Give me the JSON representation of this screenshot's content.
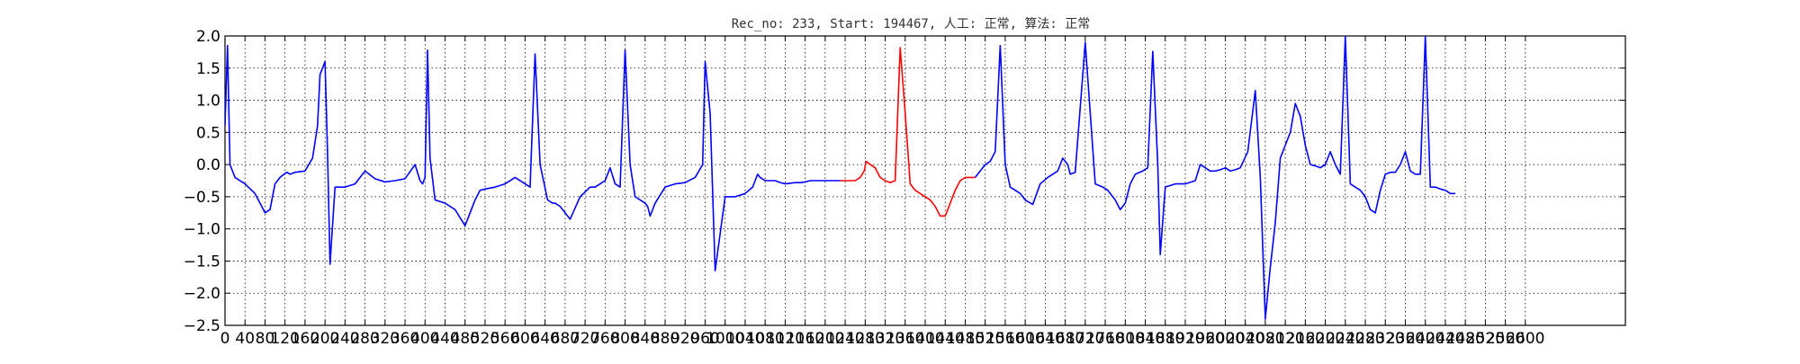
{
  "chart_data": {
    "type": "line",
    "title": "Rec_no: 233, Start: 194467, 人工: 正常, 算法: 正常",
    "xlabel": "",
    "ylabel": "",
    "xlim": [
      0,
      2800
    ],
    "ylim": [
      -2.5,
      2.0
    ],
    "grid": true,
    "grid_style": "dotted",
    "xticks": [
      0,
      40,
      80,
      120,
      160,
      200,
      240,
      280,
      320,
      360,
      400,
      440,
      480,
      520,
      560,
      600,
      640,
      680,
      720,
      760,
      800,
      840,
      880,
      920,
      960,
      1000,
      1040,
      1080,
      1120,
      1160,
      1200,
      1240,
      1280,
      1320,
      1360,
      1400,
      1440,
      1480,
      1520,
      1560,
      1600,
      1640,
      1680,
      1720,
      1760,
      1800,
      1840,
      1880,
      1920,
      1960,
      2000,
      2040,
      2080,
      2120,
      2160,
      2200,
      2240,
      2280,
      2320,
      2360,
      2400,
      2440,
      2480,
      2520,
      2560,
      2600
    ],
    "yticks": [
      -2.5,
      -2.0,
      -1.5,
      -1.0,
      -0.5,
      0.0,
      0.5,
      1.0,
      1.5,
      2.0
    ],
    "ytick_labels": [
      "−2.5",
      "−2.0",
      "−1.5",
      "−1.0",
      "−0.5",
      "0.0",
      "0.5",
      "1.0",
      "1.5",
      "2.0"
    ],
    "series": [
      {
        "color": "#0000ff",
        "x": [
          0,
          5,
          10,
          20,
          40,
          60,
          70,
          80,
          90,
          100,
          110,
          118,
          124,
          130,
          140,
          160,
          175,
          185,
          190,
          200,
          205,
          210,
          220,
          240,
          260,
          280,
          300,
          320,
          340,
          360,
          380,
          390,
          395,
          400,
          405,
          410,
          420,
          440,
          460,
          480,
          490,
          500,
          510,
          520,
          540,
          560,
          580,
          600,
          610,
          620,
          630,
          645,
          655,
          660,
          670,
          690,
          710,
          730,
          740,
          750,
          760,
          770,
          780,
          790,
          800,
          810,
          820,
          830,
          840,
          845,
          850,
          860,
          880,
          900,
          920,
          940,
          955,
          960,
          970,
          980,
          1000,
          1020,
          1040,
          1055,
          1060,
          1065,
          1070,
          1080,
          1100,
          1110,
          1120,
          1140,
          1150,
          1160,
          1170,
          1180,
          1190,
          1200,
          1210,
          1220,
          1230
        ],
        "y": [
          0.6,
          1.85,
          0.0,
          -0.2,
          -0.3,
          -0.45,
          -0.6,
          -0.75,
          -0.7,
          -0.3,
          -0.2,
          -0.15,
          -0.12,
          -0.15,
          -0.12,
          -0.1,
          0.1,
          0.6,
          1.4,
          1.6,
          0.2,
          -1.55,
          -0.35,
          -0.35,
          -0.3,
          -0.1,
          -0.22,
          -0.27,
          -0.25,
          -0.22,
          0.0,
          -0.25,
          -0.3,
          -0.2,
          1.78,
          0.1,
          -0.55,
          -0.6,
          -0.7,
          -0.95,
          -0.75,
          -0.55,
          -0.4,
          -0.38,
          -0.35,
          -0.3,
          -0.2,
          -0.3,
          -0.35,
          1.72,
          0.0,
          -0.55,
          -0.6,
          -0.6,
          -0.65,
          -0.85,
          -0.5,
          -0.35,
          -0.35,
          -0.3,
          -0.25,
          -0.05,
          -0.3,
          -0.35,
          1.78,
          0.0,
          -0.5,
          -0.55,
          -0.6,
          -0.65,
          -0.8,
          -0.6,
          -0.35,
          -0.3,
          -0.28,
          -0.2,
          0.0,
          1.6,
          0.8,
          -1.65,
          -0.5,
          -0.5,
          -0.45,
          -0.35,
          -0.25,
          -0.15,
          -0.2,
          -0.25,
          -0.25,
          -0.28,
          -0.3,
          -0.28,
          -0.28,
          -0.27,
          -0.25,
          -0.25,
          -0.25,
          -0.25,
          -0.25,
          -0.25,
          -0.25
        ]
      },
      {
        "color": "#ff0000",
        "x": [
          1230,
          1240,
          1250,
          1260,
          1270,
          1278,
          1282,
          1290,
          1300,
          1310,
          1320,
          1330,
          1340,
          1350,
          1360,
          1370,
          1380,
          1390,
          1400,
          1410,
          1420,
          1430,
          1440,
          1450,
          1460,
          1470,
          1480,
          1490,
          1500
        ],
        "y": [
          -0.25,
          -0.25,
          -0.25,
          -0.25,
          -0.2,
          -0.1,
          0.05,
          0.0,
          -0.05,
          -0.2,
          -0.25,
          -0.28,
          -0.25,
          1.82,
          0.8,
          -0.3,
          -0.4,
          -0.45,
          -0.5,
          -0.55,
          -0.65,
          -0.8,
          -0.8,
          -0.6,
          -0.4,
          -0.25,
          -0.2,
          -0.2,
          -0.2
        ]
      },
      {
        "color": "#0000ff",
        "x": [
          1500,
          1510,
          1520,
          1530,
          1540,
          1550,
          1560,
          1570,
          1580,
          1590,
          1600,
          1615,
          1630,
          1645,
          1655,
          1665,
          1675,
          1685,
          1690,
          1700,
          1720,
          1740,
          1755,
          1765,
          1780,
          1790,
          1800,
          1810,
          1820,
          1835,
          1845,
          1855,
          1865,
          1870,
          1880,
          1900,
          1920,
          1940,
          1950,
          1960,
          1970,
          1980,
          1990,
          2000,
          2010,
          2020,
          2030,
          2045,
          2060,
          2070,
          2080,
          2090,
          2100,
          2110,
          2120,
          2130,
          2140,
          2150,
          2160,
          2170,
          2180,
          2190,
          2200,
          2210,
          2220,
          2230,
          2240,
          2250,
          2260,
          2270,
          2280,
          2290,
          2300,
          2310,
          2320,
          2330,
          2340,
          2350,
          2360,
          2370,
          2380,
          2390,
          2400,
          2410,
          2420,
          2430,
          2440,
          2450,
          2460
        ],
        "y": [
          -0.2,
          -0.1,
          0.0,
          0.05,
          0.2,
          1.85,
          0.0,
          -0.35,
          -0.4,
          -0.45,
          -0.55,
          -0.62,
          -0.3,
          -0.2,
          -0.15,
          -0.1,
          0.1,
          0.0,
          -0.15,
          -0.12,
          1.9,
          -0.3,
          -0.35,
          -0.4,
          -0.55,
          -0.7,
          -0.6,
          -0.3,
          -0.15,
          -0.1,
          -0.05,
          1.76,
          0.0,
          -1.4,
          -0.35,
          -0.3,
          -0.3,
          -0.25,
          0.0,
          -0.05,
          -0.1,
          -0.1,
          -0.08,
          -0.05,
          -0.1,
          -0.08,
          -0.05,
          0.2,
          1.15,
          -0.2,
          -2.4,
          -1.6,
          -0.9,
          0.1,
          0.3,
          0.5,
          0.95,
          0.75,
          0.3,
          0.0,
          -0.02,
          -0.05,
          0.0,
          0.2,
          0.0,
          -0.15,
          2.0,
          -0.3,
          -0.35,
          -0.4,
          -0.5,
          -0.7,
          -0.75,
          -0.4,
          -0.15,
          -0.12,
          -0.12,
          0.0,
          0.2,
          -0.1,
          -0.15,
          -0.15,
          2.0,
          -0.35,
          -0.35,
          -0.38,
          -0.4,
          -0.45,
          -0.45
        ]
      }
    ]
  }
}
